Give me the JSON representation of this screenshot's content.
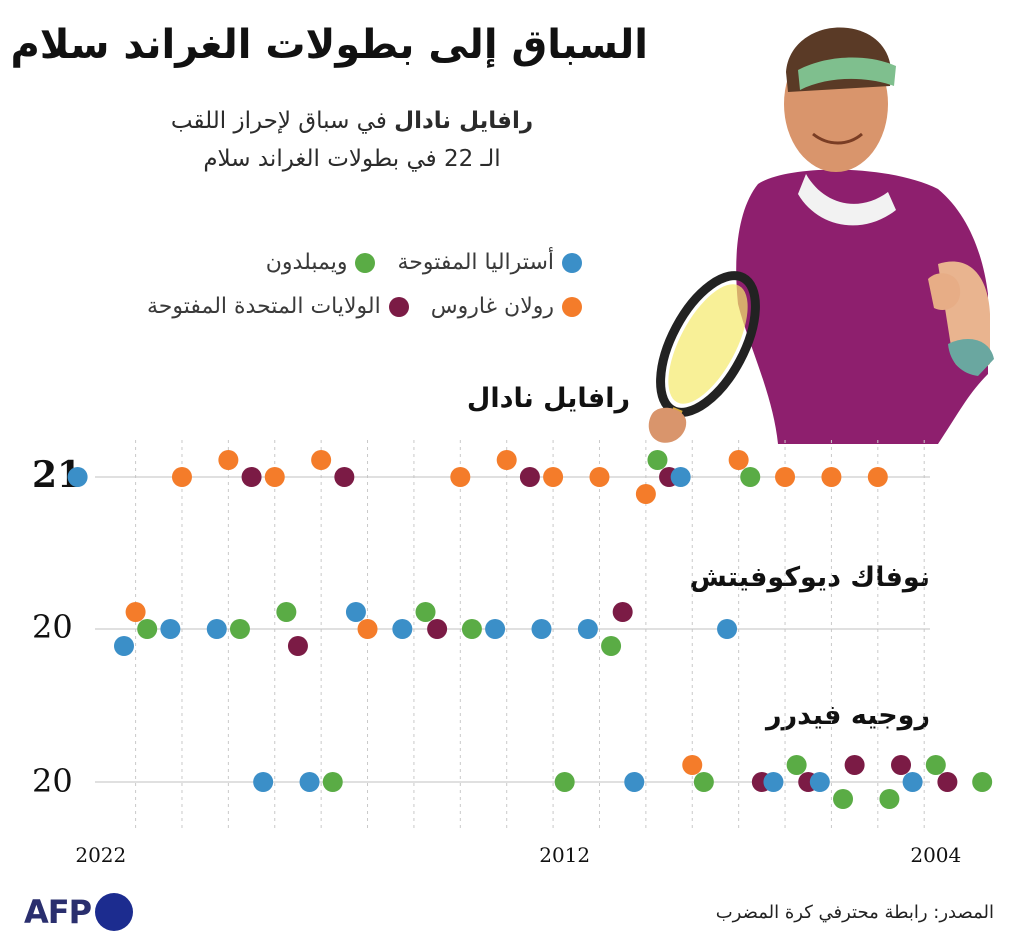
{
  "title": "السباق إلى بطولات الغراند سلام",
  "subtitle": {
    "line1_bold": "رافايل نادال",
    "line1_rest": "في سباق لإحراز اللقب",
    "line2": "الـ 22 في بطولات الغراند سلام"
  },
  "legend": {
    "australian": {
      "label": "أستراليا المفتوحة",
      "color": "#3b8fc8"
    },
    "wimbledon": {
      "label": "ويمبلدون",
      "color": "#5aac45"
    },
    "roland_garros": {
      "label": "رولان غاروس",
      "color": "#f47c2a"
    },
    "us_open": {
      "label": "الولايات المتحدة المفتوحة",
      "color": "#7b1b45"
    }
  },
  "source": "المصدر: رابطة محترفي كرة المضرب",
  "logo": "AFP",
  "chart_data": {
    "type": "scatter",
    "x_axis": {
      "range": [
        2022,
        2004
      ],
      "direction": "reversed",
      "tick_labels": [
        "2022",
        "2012",
        "2004"
      ],
      "gridlines": "vertical dashed per year"
    },
    "categories": [
      "australian",
      "wimbledon",
      "roland_garros",
      "us_open"
    ],
    "players": [
      {
        "name": "رافايل نادال",
        "count": "21",
        "titles": [
          {
            "year": 2022,
            "event": "australian",
            "lane": 0
          },
          {
            "year": 2020,
            "event": "roland_garros",
            "lane": 0
          },
          {
            "year": 2019,
            "event": "us_open",
            "lane": 0
          },
          {
            "year": 2019,
            "event": "roland_garros",
            "lane": 1
          },
          {
            "year": 2018,
            "event": "roland_garros",
            "lane": 0
          },
          {
            "year": 2017,
            "event": "us_open",
            "lane": 0
          },
          {
            "year": 2017,
            "event": "roland_garros",
            "lane": 1
          },
          {
            "year": 2014,
            "event": "roland_garros",
            "lane": 0
          },
          {
            "year": 2013,
            "event": "us_open",
            "lane": 0
          },
          {
            "year": 2013,
            "event": "roland_garros",
            "lane": 1
          },
          {
            "year": 2012,
            "event": "roland_garros",
            "lane": 0
          },
          {
            "year": 2011,
            "event": "roland_garros",
            "lane": 0
          },
          {
            "year": 2010,
            "event": "us_open",
            "lane": 0
          },
          {
            "year": 2010,
            "event": "wimbledon",
            "lane": 1
          },
          {
            "year": 2010,
            "event": "roland_garros",
            "lane": -1
          },
          {
            "year": 2009,
            "event": "australian",
            "lane": 0
          },
          {
            "year": 2008,
            "event": "wimbledon",
            "lane": 0
          },
          {
            "year": 2008,
            "event": "roland_garros",
            "lane": 1
          },
          {
            "year": 2007,
            "event": "roland_garros",
            "lane": 0
          },
          {
            "year": 2006,
            "event": "roland_garros",
            "lane": 0
          },
          {
            "year": 2005,
            "event": "roland_garros",
            "lane": 0
          }
        ]
      },
      {
        "name": "نوفاك ديوكوفيتش",
        "count": "20",
        "titles": [
          {
            "year": 2021,
            "event": "wimbledon",
            "lane": 0
          },
          {
            "year": 2021,
            "event": "roland_garros",
            "lane": 1
          },
          {
            "year": 2021,
            "event": "australian",
            "lane": -1
          },
          {
            "year": 2020,
            "event": "australian",
            "lane": 0
          },
          {
            "year": 2019,
            "event": "wimbledon",
            "lane": 0
          },
          {
            "year": 2019,
            "event": "australian",
            "lane": 0
          },
          {
            "year": 2018,
            "event": "wimbledon",
            "lane": 1
          },
          {
            "year": 2018,
            "event": "us_open",
            "lane": -1
          },
          {
            "year": 2016,
            "event": "roland_garros",
            "lane": 0
          },
          {
            "year": 2016,
            "event": "australian",
            "lane": 1
          },
          {
            "year": 2015,
            "event": "wimbledon",
            "lane": 1
          },
          {
            "year": 2015,
            "event": "us_open",
            "lane": 0
          },
          {
            "year": 2015,
            "event": "australian",
            "lane": 0
          },
          {
            "year": 2014,
            "event": "wimbledon",
            "lane": 0
          },
          {
            "year": 2013,
            "event": "australian",
            "lane": 0
          },
          {
            "year": 2012,
            "event": "australian",
            "lane": 0
          },
          {
            "year": 2011,
            "event": "us_open",
            "lane": 1
          },
          {
            "year": 2011,
            "event": "wimbledon",
            "lane": -1
          },
          {
            "year": 2011,
            "event": "australian",
            "lane": 0
          },
          {
            "year": 2008,
            "event": "australian",
            "lane": 0
          }
        ]
      },
      {
        "name": "روجيه فيدرر",
        "count": "20",
        "titles": [
          {
            "year": 2018,
            "event": "australian",
            "lane": 0
          },
          {
            "year": 2017,
            "event": "wimbledon",
            "lane": 0
          },
          {
            "year": 2017,
            "event": "australian",
            "lane": 0
          },
          {
            "year": 2012,
            "event": "wimbledon",
            "lane": 0
          },
          {
            "year": 2010,
            "event": "australian",
            "lane": 0
          },
          {
            "year": 2009,
            "event": "wimbledon",
            "lane": 0
          },
          {
            "year": 2009,
            "event": "roland_garros",
            "lane": 1
          },
          {
            "year": 2008,
            "event": "us_open",
            "lane": 0
          },
          {
            "year": 2007,
            "event": "us_open",
            "lane": 0
          },
          {
            "year": 2007,
            "event": "wimbledon",
            "lane": 1
          },
          {
            "year": 2007,
            "event": "australian",
            "lane": 0
          },
          {
            "year": 2006,
            "event": "us_open",
            "lane": 1
          },
          {
            "year": 2006,
            "event": "wimbledon",
            "lane": -1
          },
          {
            "year": 2006,
            "event": "australian",
            "lane": 0
          },
          {
            "year": 2005,
            "event": "us_open",
            "lane": 1
          },
          {
            "year": 2005,
            "event": "wimbledon",
            "lane": -1
          },
          {
            "year": 2004,
            "event": "us_open",
            "lane": 0
          },
          {
            "year": 2004,
            "event": "wimbledon",
            "lane": 1
          },
          {
            "year": 2004,
            "event": "australian",
            "lane": 0
          },
          {
            "year": 2003,
            "event": "wimbledon",
            "lane": 0
          }
        ]
      }
    ]
  }
}
